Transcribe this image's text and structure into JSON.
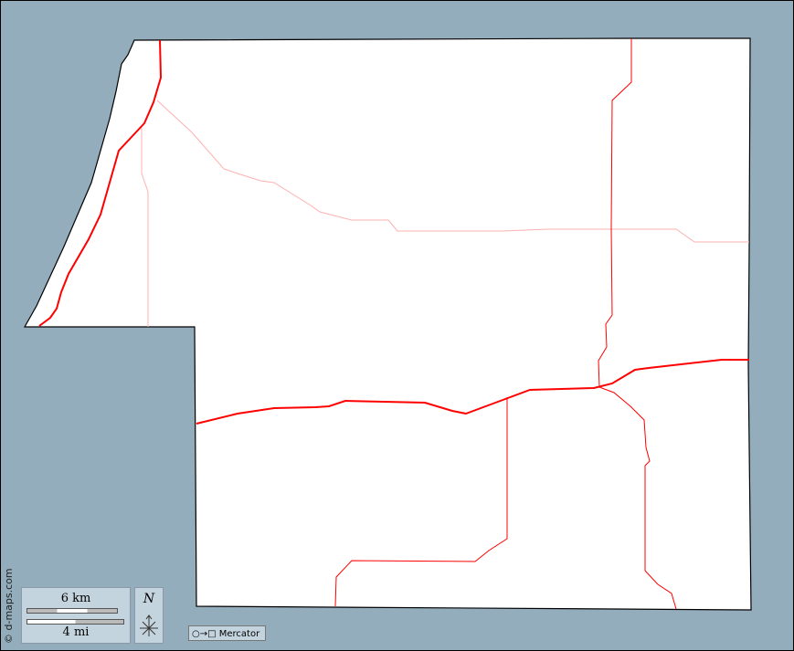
{
  "map": {
    "colors": {
      "water": "#94adbd",
      "land": "#ffffff",
      "major_road": "#ff0000",
      "minor_road": "#ffb0b0",
      "panel": "#c4d4de"
    },
    "credit": "© d-maps.com",
    "scale": {
      "km_label": "6 km",
      "mi_label": "4 mi"
    },
    "north_label": "N",
    "projection": {
      "icon": "circle-to-square-icon",
      "label": "○→□ Mercator"
    }
  }
}
